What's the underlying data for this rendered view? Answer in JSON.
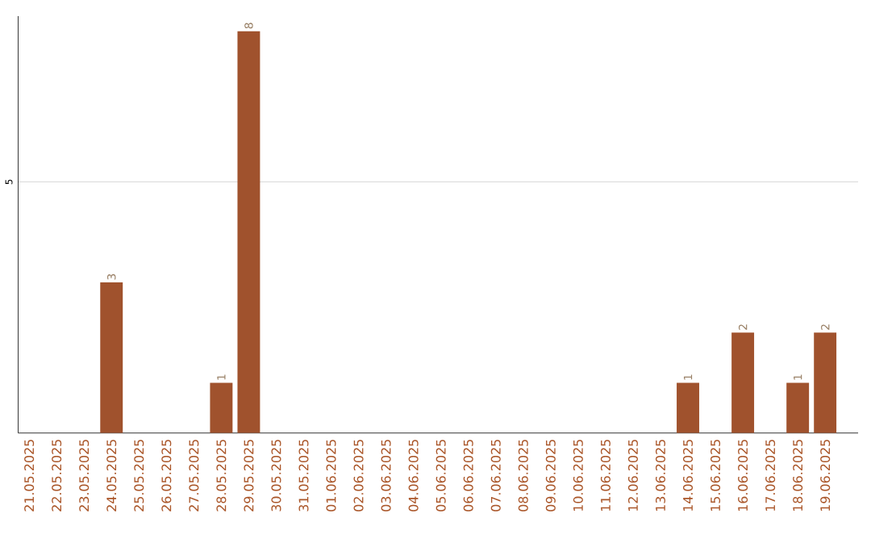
{
  "chart_data": {
    "type": "bar",
    "categories": [
      "21.05.2025",
      "22.05.2025",
      "23.05.2025",
      "24.05.2025",
      "25.05.2025",
      "26.05.2025",
      "27.05.2025",
      "28.05.2025",
      "29.05.2025",
      "30.05.2025",
      "31.05.2025",
      "01.06.2025",
      "02.06.2025",
      "03.06.2025",
      "04.06.2025",
      "05.06.2025",
      "06.06.2025",
      "07.06.2025",
      "08.06.2025",
      "09.06.2025",
      "10.06.2025",
      "11.06.2025",
      "12.06.2025",
      "13.06.2025",
      "14.06.2025",
      "15.06.2025",
      "16.06.2025",
      "17.06.2025",
      "18.06.2025",
      "19.06.2025"
    ],
    "values": [
      0,
      0,
      0,
      3,
      0,
      0,
      0,
      1,
      8,
      0,
      0,
      0,
      0,
      0,
      0,
      0,
      0,
      0,
      0,
      0,
      0,
      0,
      0,
      0,
      1,
      0,
      2,
      0,
      1,
      2
    ],
    "value_labels": [
      null,
      null,
      null,
      "3",
      null,
      null,
      null,
      "1",
      "8",
      null,
      null,
      null,
      null,
      null,
      null,
      null,
      null,
      null,
      null,
      null,
      null,
      null,
      null,
      null,
      "1",
      null,
      "2",
      null,
      "1",
      "2"
    ],
    "color": "#a0522d",
    "ylim": [
      0,
      8.3
    ],
    "yticks": [
      5
    ],
    "grid": "y"
  }
}
